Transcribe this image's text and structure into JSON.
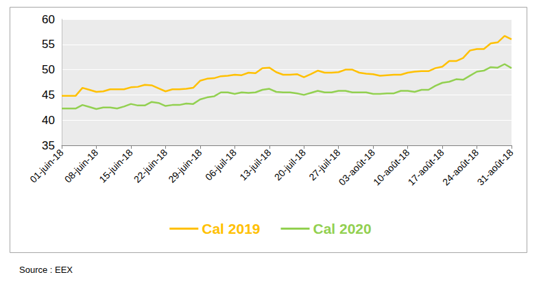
{
  "chart_data": {
    "type": "line",
    "source": "Source : EEX",
    "categories": [
      "01-juin-18",
      null,
      null,
      null,
      null,
      "08-juin-18",
      null,
      null,
      null,
      null,
      "15-juin-18",
      null,
      null,
      null,
      null,
      "22-juin-18",
      null,
      null,
      null,
      null,
      "29-juin-18",
      null,
      null,
      null,
      null,
      "06-juil-18",
      null,
      null,
      null,
      null,
      "13-juil-18",
      null,
      null,
      null,
      null,
      "20-juil-18",
      null,
      null,
      null,
      null,
      "27-juil-18",
      null,
      null,
      null,
      null,
      "03-août-18",
      null,
      null,
      null,
      null,
      "10-août-18",
      null,
      null,
      null,
      null,
      "17-août-18",
      null,
      null,
      null,
      null,
      "24-août-18",
      null,
      null,
      null,
      null,
      "31-août-18"
    ],
    "series": [
      {
        "name": "Cal 2019",
        "color": "#FFC000",
        "values": [
          44.8,
          44.8,
          44.8,
          46.4,
          46.0,
          45.6,
          45.7,
          46.1,
          46.1,
          46.1,
          46.5,
          46.6,
          47.0,
          46.9,
          46.3,
          45.7,
          46.1,
          46.1,
          46.2,
          46.4,
          47.8,
          48.2,
          48.3,
          48.7,
          48.8,
          49.0,
          48.9,
          49.4,
          49.3,
          50.3,
          50.4,
          49.5,
          49.0,
          49.0,
          49.1,
          48.5,
          49.1,
          49.8,
          49.4,
          49.4,
          49.5,
          50.0,
          50.0,
          49.4,
          49.2,
          49.1,
          48.8,
          48.9,
          49.0,
          49.0,
          49.4,
          49.6,
          49.7,
          49.7,
          50.3,
          50.6,
          51.7,
          51.7,
          52.3,
          53.8,
          54.1,
          54.1,
          55.2,
          55.4,
          56.7,
          56.0
        ]
      },
      {
        "name": "Cal 2020",
        "color": "#92D050",
        "values": [
          42.3,
          42.3,
          42.3,
          43.0,
          42.6,
          42.2,
          42.5,
          42.5,
          42.3,
          42.7,
          43.2,
          42.9,
          42.9,
          43.6,
          43.4,
          42.8,
          43.0,
          43.0,
          43.3,
          43.2,
          44.1,
          44.5,
          44.7,
          45.5,
          45.5,
          45.2,
          45.5,
          45.4,
          45.5,
          46.0,
          46.2,
          45.6,
          45.5,
          45.5,
          45.3,
          45.0,
          45.4,
          45.8,
          45.5,
          45.5,
          45.8,
          45.8,
          45.5,
          45.5,
          45.5,
          45.2,
          45.2,
          45.3,
          45.3,
          45.8,
          45.8,
          45.6,
          46.0,
          46.0,
          46.8,
          47.4,
          47.6,
          48.1,
          48.0,
          48.8,
          49.6,
          49.8,
          50.5,
          50.4,
          51.1,
          50.3
        ]
      }
    ],
    "ylim": [
      35,
      60
    ],
    "yticks": [
      35,
      40,
      45,
      50,
      55,
      60
    ],
    "grid": true,
    "legend": "bottom"
  }
}
